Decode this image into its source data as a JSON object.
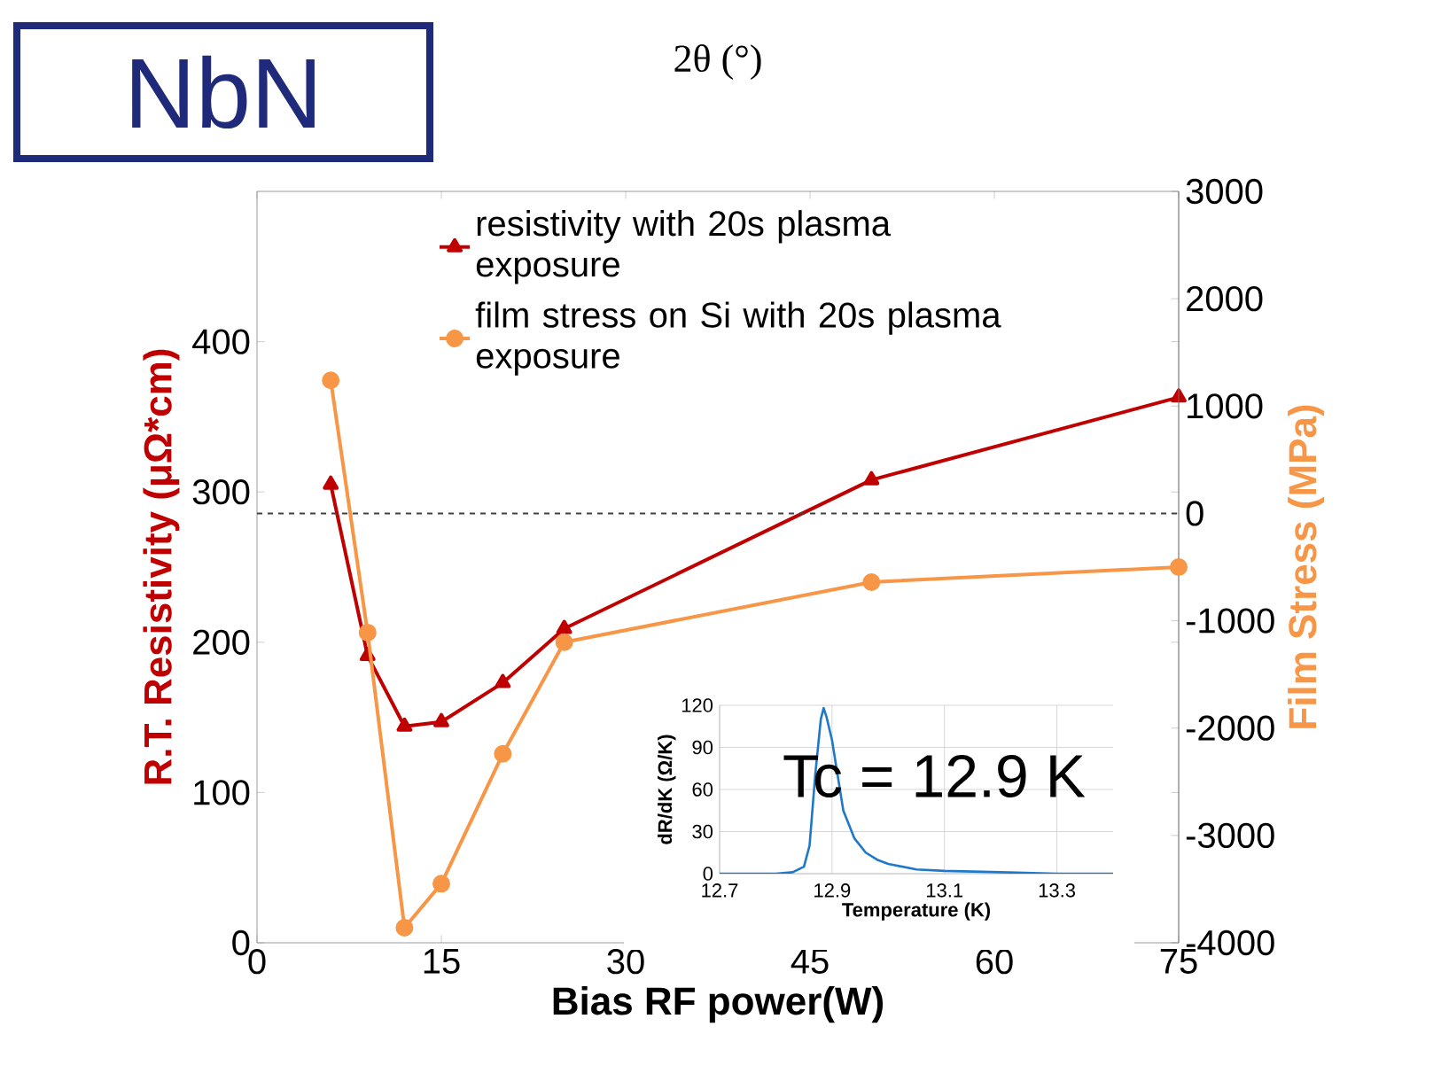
{
  "chart_data": [
    {
      "type": "line",
      "annotations": [
        "NbN",
        "2θ (°)"
      ],
      "xlabel": "Bias RF power(W)",
      "ylabel": "R.T. Resistivity (μΩ*cm)",
      "y2label": "Film Stress (MPa)",
      "x": [
        6,
        9,
        12,
        15,
        20,
        25,
        50,
        75
      ],
      "xlim": [
        0,
        75
      ],
      "xticks": [
        0,
        15,
        30,
        45,
        60,
        75
      ],
      "ylim": [
        0,
        500
      ],
      "yticks": [
        0,
        100,
        200,
        300,
        400
      ],
      "y2lim": [
        -4000,
        3000
      ],
      "y2ticks": [
        -4000,
        -3000,
        -2000,
        -1000,
        0,
        1000,
        2000,
        3000
      ],
      "legend": "top left",
      "line_style": "solid",
      "ref_lines": [
        {
          "axis": "y2",
          "value": 0,
          "line_style": "dashed",
          "color": "#404040"
        }
      ],
      "series": [
        {
          "name": "resistivity with 20s plasma exposure",
          "color": "#c00000",
          "marker": "triangle",
          "values": [
            305,
            191,
            144,
            147,
            173,
            209,
            308,
            363
          ]
        },
        {
          "name": "film stress on Si with 20s plasma exposure",
          "color": "#f79646",
          "marker": "circle",
          "axis": "y2",
          "values": [
            1240,
            -1110,
            -3860,
            -3450,
            -2240,
            -1200,
            -640,
            -500
          ]
        }
      ]
    },
    {
      "type": "line",
      "annotations": [
        "Tc = 12.9 K"
      ],
      "xlabel": "Temperature (K)",
      "ylabel": "dR/dK (Ω/K)",
      "xlim": [
        12.7,
        13.4
      ],
      "xticks": [
        12.7,
        12.9,
        13.1,
        13.3
      ],
      "ylim": [
        0,
        120
      ],
      "yticks": [
        0,
        30,
        60,
        90,
        120
      ],
      "grid": true,
      "marker": "none",
      "series": [
        {
          "color": "#1f78c8",
          "x": [
            12.7,
            12.8,
            12.83,
            12.85,
            12.86,
            12.87,
            12.88,
            12.885,
            12.89,
            12.9,
            12.91,
            12.92,
            12.94,
            12.96,
            12.98,
            13.0,
            13.05,
            13.1,
            13.2,
            13.3,
            13.4
          ],
          "values": [
            0,
            0,
            1,
            5,
            20,
            70,
            110,
            118,
            112,
            95,
            70,
            45,
            25,
            15,
            10,
            7,
            3,
            2,
            1,
            0,
            0
          ]
        }
      ]
    }
  ]
}
